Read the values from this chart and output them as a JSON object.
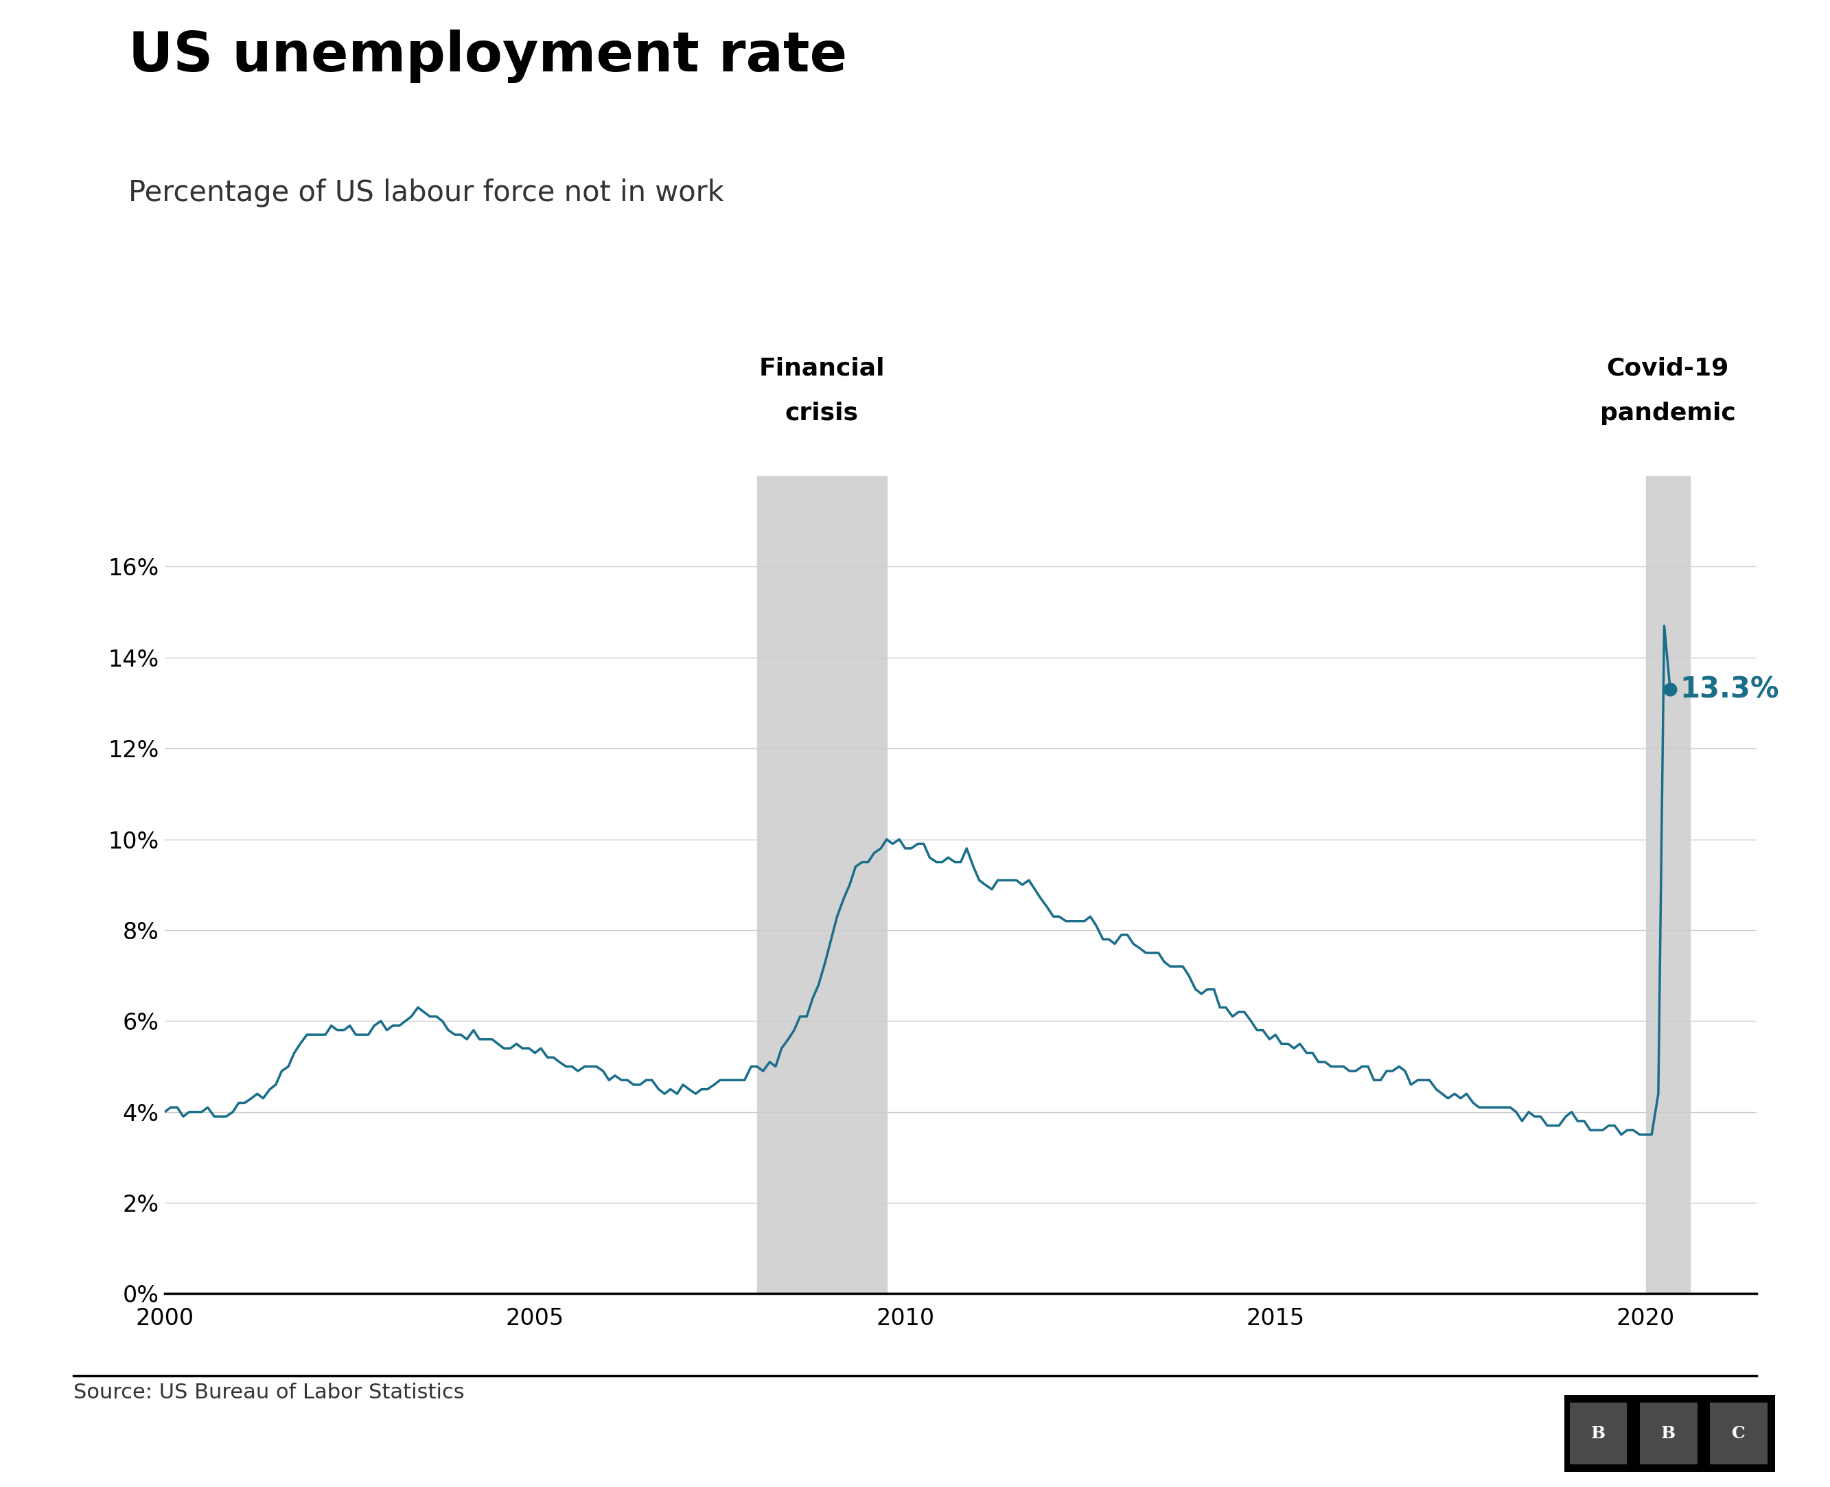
{
  "title": "US unemployment rate",
  "subtitle": "Percentage of US labour force not in work",
  "source": "Source: US Bureau of Labor Statistics",
  "line_color": "#1a6e8a",
  "annotation_color": "#1a6e8a",
  "background_color": "#ffffff",
  "shading_color": "#d3d3d3",
  "xlim": [
    2000.0,
    2021.5
  ],
  "ylim": [
    0,
    18
  ],
  "yticks": [
    0,
    2,
    4,
    6,
    8,
    10,
    12,
    14,
    16
  ],
  "xticks": [
    2000,
    2005,
    2010,
    2015,
    2020
  ],
  "financial_crisis_start": 2008.0,
  "financial_crisis_end": 2009.75,
  "covid_start": 2020.0,
  "covid_end": 2020.6,
  "endpoint_value": 13.3,
  "endpoint_year": 2020.33,
  "data": [
    [
      2000.0,
      4.0
    ],
    [
      2000.08,
      4.1
    ],
    [
      2000.17,
      4.1
    ],
    [
      2000.25,
      3.9
    ],
    [
      2000.33,
      4.0
    ],
    [
      2000.42,
      4.0
    ],
    [
      2000.5,
      4.0
    ],
    [
      2000.58,
      4.1
    ],
    [
      2000.67,
      3.9
    ],
    [
      2000.75,
      3.9
    ],
    [
      2000.83,
      3.9
    ],
    [
      2000.92,
      4.0
    ],
    [
      2001.0,
      4.2
    ],
    [
      2001.08,
      4.2
    ],
    [
      2001.17,
      4.3
    ],
    [
      2001.25,
      4.4
    ],
    [
      2001.33,
      4.3
    ],
    [
      2001.42,
      4.5
    ],
    [
      2001.5,
      4.6
    ],
    [
      2001.58,
      4.9
    ],
    [
      2001.67,
      5.0
    ],
    [
      2001.75,
      5.3
    ],
    [
      2001.83,
      5.5
    ],
    [
      2001.92,
      5.7
    ],
    [
      2002.0,
      5.7
    ],
    [
      2002.08,
      5.7
    ],
    [
      2002.17,
      5.7
    ],
    [
      2002.25,
      5.9
    ],
    [
      2002.33,
      5.8
    ],
    [
      2002.42,
      5.8
    ],
    [
      2002.5,
      5.9
    ],
    [
      2002.58,
      5.7
    ],
    [
      2002.67,
      5.7
    ],
    [
      2002.75,
      5.7
    ],
    [
      2002.83,
      5.9
    ],
    [
      2002.92,
      6.0
    ],
    [
      2003.0,
      5.8
    ],
    [
      2003.08,
      5.9
    ],
    [
      2003.17,
      5.9
    ],
    [
      2003.25,
      6.0
    ],
    [
      2003.33,
      6.1
    ],
    [
      2003.42,
      6.3
    ],
    [
      2003.5,
      6.2
    ],
    [
      2003.58,
      6.1
    ],
    [
      2003.67,
      6.1
    ],
    [
      2003.75,
      6.0
    ],
    [
      2003.83,
      5.8
    ],
    [
      2003.92,
      5.7
    ],
    [
      2004.0,
      5.7
    ],
    [
      2004.08,
      5.6
    ],
    [
      2004.17,
      5.8
    ],
    [
      2004.25,
      5.6
    ],
    [
      2004.33,
      5.6
    ],
    [
      2004.42,
      5.6
    ],
    [
      2004.5,
      5.5
    ],
    [
      2004.58,
      5.4
    ],
    [
      2004.67,
      5.4
    ],
    [
      2004.75,
      5.5
    ],
    [
      2004.83,
      5.4
    ],
    [
      2004.92,
      5.4
    ],
    [
      2005.0,
      5.3
    ],
    [
      2005.08,
      5.4
    ],
    [
      2005.17,
      5.2
    ],
    [
      2005.25,
      5.2
    ],
    [
      2005.33,
      5.1
    ],
    [
      2005.42,
      5.0
    ],
    [
      2005.5,
      5.0
    ],
    [
      2005.58,
      4.9
    ],
    [
      2005.67,
      5.0
    ],
    [
      2005.75,
      5.0
    ],
    [
      2005.83,
      5.0
    ],
    [
      2005.92,
      4.9
    ],
    [
      2006.0,
      4.7
    ],
    [
      2006.08,
      4.8
    ],
    [
      2006.17,
      4.7
    ],
    [
      2006.25,
      4.7
    ],
    [
      2006.33,
      4.6
    ],
    [
      2006.42,
      4.6
    ],
    [
      2006.5,
      4.7
    ],
    [
      2006.58,
      4.7
    ],
    [
      2006.67,
      4.5
    ],
    [
      2006.75,
      4.4
    ],
    [
      2006.83,
      4.5
    ],
    [
      2006.92,
      4.4
    ],
    [
      2007.0,
      4.6
    ],
    [
      2007.08,
      4.5
    ],
    [
      2007.17,
      4.4
    ],
    [
      2007.25,
      4.5
    ],
    [
      2007.33,
      4.5
    ],
    [
      2007.42,
      4.6
    ],
    [
      2007.5,
      4.7
    ],
    [
      2007.58,
      4.7
    ],
    [
      2007.67,
      4.7
    ],
    [
      2007.75,
      4.7
    ],
    [
      2007.83,
      4.7
    ],
    [
      2007.92,
      5.0
    ],
    [
      2008.0,
      5.0
    ],
    [
      2008.08,
      4.9
    ],
    [
      2008.17,
      5.1
    ],
    [
      2008.25,
      5.0
    ],
    [
      2008.33,
      5.4
    ],
    [
      2008.42,
      5.6
    ],
    [
      2008.5,
      5.8
    ],
    [
      2008.58,
      6.1
    ],
    [
      2008.67,
      6.1
    ],
    [
      2008.75,
      6.5
    ],
    [
      2008.83,
      6.8
    ],
    [
      2008.92,
      7.3
    ],
    [
      2009.0,
      7.8
    ],
    [
      2009.08,
      8.3
    ],
    [
      2009.17,
      8.7
    ],
    [
      2009.25,
      9.0
    ],
    [
      2009.33,
      9.4
    ],
    [
      2009.42,
      9.5
    ],
    [
      2009.5,
      9.5
    ],
    [
      2009.58,
      9.7
    ],
    [
      2009.67,
      9.8
    ],
    [
      2009.75,
      10.0
    ],
    [
      2009.83,
      9.9
    ],
    [
      2009.92,
      10.0
    ],
    [
      2010.0,
      9.8
    ],
    [
      2010.08,
      9.8
    ],
    [
      2010.17,
      9.9
    ],
    [
      2010.25,
      9.9
    ],
    [
      2010.33,
      9.6
    ],
    [
      2010.42,
      9.5
    ],
    [
      2010.5,
      9.5
    ],
    [
      2010.58,
      9.6
    ],
    [
      2010.67,
      9.5
    ],
    [
      2010.75,
      9.5
    ],
    [
      2010.83,
      9.8
    ],
    [
      2010.92,
      9.4
    ],
    [
      2011.0,
      9.1
    ],
    [
      2011.08,
      9.0
    ],
    [
      2011.17,
      8.9
    ],
    [
      2011.25,
      9.1
    ],
    [
      2011.33,
      9.1
    ],
    [
      2011.42,
      9.1
    ],
    [
      2011.5,
      9.1
    ],
    [
      2011.58,
      9.0
    ],
    [
      2011.67,
      9.1
    ],
    [
      2011.75,
      8.9
    ],
    [
      2011.83,
      8.7
    ],
    [
      2011.92,
      8.5
    ],
    [
      2012.0,
      8.3
    ],
    [
      2012.08,
      8.3
    ],
    [
      2012.17,
      8.2
    ],
    [
      2012.25,
      8.2
    ],
    [
      2012.33,
      8.2
    ],
    [
      2012.42,
      8.2
    ],
    [
      2012.5,
      8.3
    ],
    [
      2012.58,
      8.1
    ],
    [
      2012.67,
      7.8
    ],
    [
      2012.75,
      7.8
    ],
    [
      2012.83,
      7.7
    ],
    [
      2012.92,
      7.9
    ],
    [
      2013.0,
      7.9
    ],
    [
      2013.08,
      7.7
    ],
    [
      2013.17,
      7.6
    ],
    [
      2013.25,
      7.5
    ],
    [
      2013.33,
      7.5
    ],
    [
      2013.42,
      7.5
    ],
    [
      2013.5,
      7.3
    ],
    [
      2013.58,
      7.2
    ],
    [
      2013.67,
      7.2
    ],
    [
      2013.75,
      7.2
    ],
    [
      2013.83,
      7.0
    ],
    [
      2013.92,
      6.7
    ],
    [
      2014.0,
      6.6
    ],
    [
      2014.08,
      6.7
    ],
    [
      2014.17,
      6.7
    ],
    [
      2014.25,
      6.3
    ],
    [
      2014.33,
      6.3
    ],
    [
      2014.42,
      6.1
    ],
    [
      2014.5,
      6.2
    ],
    [
      2014.58,
      6.2
    ],
    [
      2014.67,
      6.0
    ],
    [
      2014.75,
      5.8
    ],
    [
      2014.83,
      5.8
    ],
    [
      2014.92,
      5.6
    ],
    [
      2015.0,
      5.7
    ],
    [
      2015.08,
      5.5
    ],
    [
      2015.17,
      5.5
    ],
    [
      2015.25,
      5.4
    ],
    [
      2015.33,
      5.5
    ],
    [
      2015.42,
      5.3
    ],
    [
      2015.5,
      5.3
    ],
    [
      2015.58,
      5.1
    ],
    [
      2015.67,
      5.1
    ],
    [
      2015.75,
      5.0
    ],
    [
      2015.83,
      5.0
    ],
    [
      2015.92,
      5.0
    ],
    [
      2016.0,
      4.9
    ],
    [
      2016.08,
      4.9
    ],
    [
      2016.17,
      5.0
    ],
    [
      2016.25,
      5.0
    ],
    [
      2016.33,
      4.7
    ],
    [
      2016.42,
      4.7
    ],
    [
      2016.5,
      4.9
    ],
    [
      2016.58,
      4.9
    ],
    [
      2016.67,
      5.0
    ],
    [
      2016.75,
      4.9
    ],
    [
      2016.83,
      4.6
    ],
    [
      2016.92,
      4.7
    ],
    [
      2017.0,
      4.7
    ],
    [
      2017.08,
      4.7
    ],
    [
      2017.17,
      4.5
    ],
    [
      2017.25,
      4.4
    ],
    [
      2017.33,
      4.3
    ],
    [
      2017.42,
      4.4
    ],
    [
      2017.5,
      4.3
    ],
    [
      2017.58,
      4.4
    ],
    [
      2017.67,
      4.2
    ],
    [
      2017.75,
      4.1
    ],
    [
      2017.83,
      4.1
    ],
    [
      2017.92,
      4.1
    ],
    [
      2018.0,
      4.1
    ],
    [
      2018.08,
      4.1
    ],
    [
      2018.17,
      4.1
    ],
    [
      2018.25,
      4.0
    ],
    [
      2018.33,
      3.8
    ],
    [
      2018.42,
      4.0
    ],
    [
      2018.5,
      3.9
    ],
    [
      2018.58,
      3.9
    ],
    [
      2018.67,
      3.7
    ],
    [
      2018.75,
      3.7
    ],
    [
      2018.83,
      3.7
    ],
    [
      2018.92,
      3.9
    ],
    [
      2019.0,
      4.0
    ],
    [
      2019.08,
      3.8
    ],
    [
      2019.17,
      3.8
    ],
    [
      2019.25,
      3.6
    ],
    [
      2019.33,
      3.6
    ],
    [
      2019.42,
      3.6
    ],
    [
      2019.5,
      3.7
    ],
    [
      2019.58,
      3.7
    ],
    [
      2019.67,
      3.5
    ],
    [
      2019.75,
      3.6
    ],
    [
      2019.83,
      3.6
    ],
    [
      2019.92,
      3.5
    ],
    [
      2020.0,
      3.5
    ],
    [
      2020.08,
      3.5
    ],
    [
      2020.17,
      4.4
    ],
    [
      2020.25,
      14.7
    ],
    [
      2020.33,
      13.3
    ]
  ]
}
